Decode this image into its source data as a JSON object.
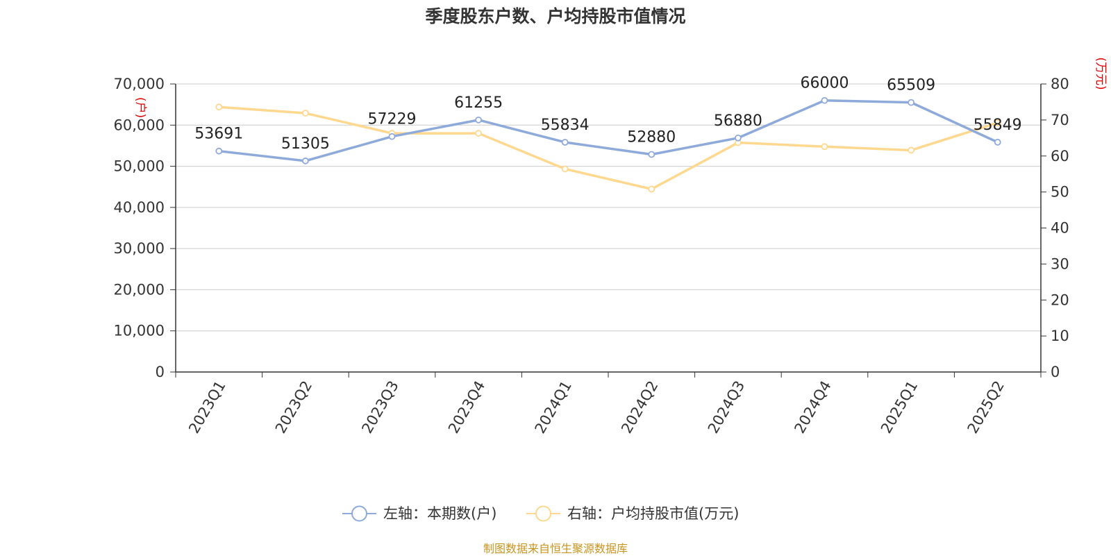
{
  "footer": {
    "source": "制图数据来自恒生聚源数据库"
  },
  "colors": {
    "left_series": "#8eaadb",
    "right_series": "#ffd88f",
    "axis_unit": "#e00000",
    "source": "#c8941e"
  },
  "chart_data": {
    "type": "line",
    "title": "季度股东户数、户均持股市值情况",
    "categories": [
      "2023Q1",
      "2023Q2",
      "2023Q3",
      "2023Q4",
      "2024Q1",
      "2024Q2",
      "2024Q3",
      "2024Q4",
      "2025Q1",
      "2025Q2"
    ],
    "y_left": {
      "unit_label": "(户)",
      "range": [
        0,
        70000
      ],
      "ticks": [
        "0",
        "10,000",
        "20,000",
        "30,000",
        "40,000",
        "50,000",
        "60,000",
        "70,000"
      ]
    },
    "y_right": {
      "unit_label": "(万元)",
      "range": [
        0,
        80
      ],
      "ticks": [
        "0",
        "10",
        "20",
        "30",
        "40",
        "50",
        "60",
        "70",
        "80"
      ]
    },
    "grid": true,
    "legend_position": "bottom",
    "series": [
      {
        "name": "左轴：本期数(户)",
        "axis": "left",
        "values": [
          53691,
          51305,
          57229,
          61255,
          55834,
          52880,
          56880,
          66000,
          65509,
          55849
        ],
        "labels": [
          "53691",
          "51305",
          "57229",
          "61255",
          "55834",
          "52880",
          "56880",
          "66000",
          "65509",
          "55849"
        ]
      },
      {
        "name": "右轴：户均持股市值(万元)",
        "axis": "right",
        "values": [
          73.6,
          71.9,
          66.3,
          66.3,
          56.4,
          50.8,
          63.7,
          62.6,
          61.6,
          69.2
        ]
      }
    ]
  }
}
